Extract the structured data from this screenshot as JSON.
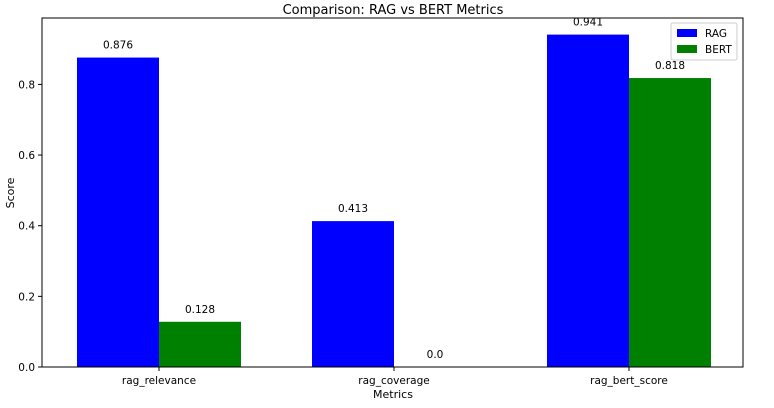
{
  "chart_data": {
    "type": "bar",
    "title": "Comparison: RAG vs BERT Metrics",
    "xlabel": "Metrics",
    "ylabel": "Score",
    "categories": [
      "rag_relevance",
      "rag_coverage",
      "rag_bert_score"
    ],
    "series": [
      {
        "name": "RAG",
        "values": [
          0.876,
          0.413,
          0.941
        ],
        "labels": [
          "0.876",
          "0.413",
          "0.941"
        ],
        "color": "#0000ff"
      },
      {
        "name": "BERT",
        "values": [
          0.128,
          0.0,
          0.818
        ],
        "labels": [
          "0.128",
          "0.0",
          "0.818"
        ],
        "color": "#008000"
      }
    ],
    "ylim": [
      0,
      0.988
    ],
    "yticks": [
      0.0,
      0.2,
      0.4,
      0.6,
      0.8
    ],
    "ytick_labels": [
      "0.0",
      "0.2",
      "0.4",
      "0.6",
      "0.8"
    ],
    "grid": false,
    "legend_position": "top-right"
  }
}
